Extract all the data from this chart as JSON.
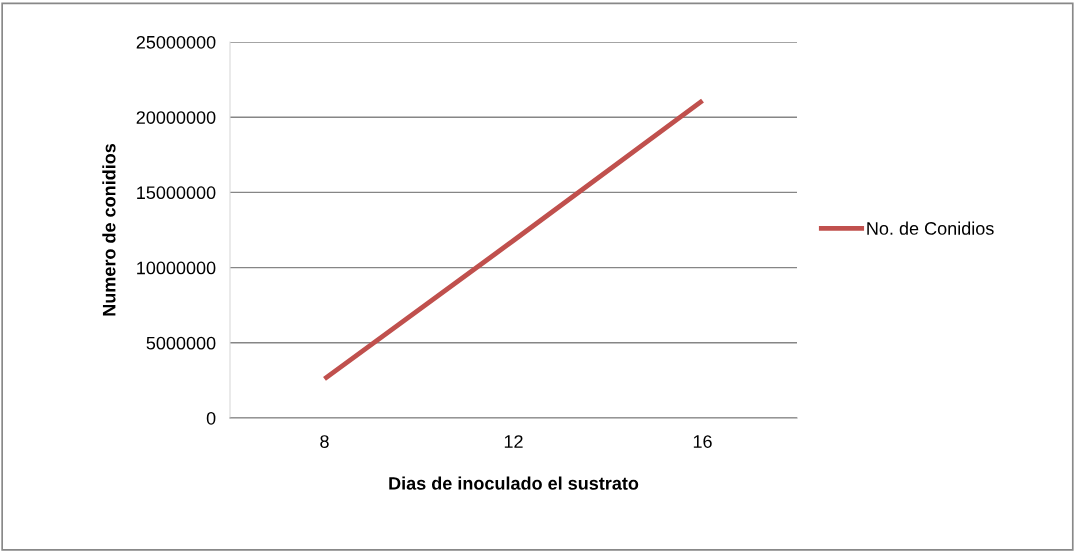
{
  "chart_data": {
    "type": "line",
    "xlabel": "Dias de inoculado el sustrato",
    "ylabel": "Numero de conidios",
    "categories": [
      "8",
      "12",
      "16"
    ],
    "series": [
      {
        "name": "No. de Conidios",
        "color": "#c0504d",
        "values": [
          2600000,
          11800000,
          21100000
        ]
      }
    ],
    "ylim": [
      0,
      25000000
    ],
    "yticks": [
      0,
      5000000,
      10000000,
      15000000,
      20000000,
      25000000
    ],
    "grid": "y",
    "legend": "right",
    "marker": "none",
    "line_style": "solid"
  }
}
